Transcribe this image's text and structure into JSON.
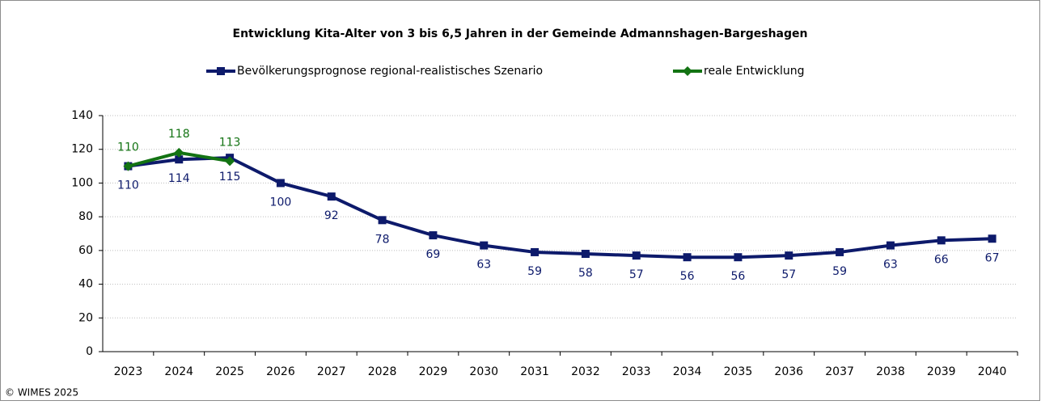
{
  "chart_data": {
    "type": "line",
    "title": "Entwicklung Kita-Alter von 3 bis 6,5 Jahren in der Gemeinde Admannshagen-Bargeshagen",
    "categories": [
      "2023",
      "2024",
      "2025",
      "2026",
      "2027",
      "2028",
      "2029",
      "2030",
      "2031",
      "2032",
      "2033",
      "2034",
      "2035",
      "2036",
      "2037",
      "2038",
      "2039",
      "2040"
    ],
    "series": [
      {
        "name": "Bevölkerungsprognose regional-realistisches Szenario",
        "color": "#0d1a6b",
        "marker": "square",
        "label_position": "below",
        "values": [
          110,
          114,
          115,
          100,
          92,
          78,
          69,
          63,
          59,
          58,
          57,
          56,
          56,
          57,
          59,
          63,
          66,
          67
        ]
      },
      {
        "name": "reale Entwicklung",
        "color": "#137313",
        "marker": "diamond",
        "label_position": "above",
        "values": [
          110,
          118,
          113,
          null,
          null,
          null,
          null,
          null,
          null,
          null,
          null,
          null,
          null,
          null,
          null,
          null,
          null,
          null
        ]
      }
    ],
    "ylim": [
      0,
      140
    ],
    "yticks": [
      0,
      20,
      40,
      60,
      80,
      100,
      120,
      140
    ],
    "grid": true,
    "legend": "top",
    "copyright": "© WIMES 2025"
  }
}
